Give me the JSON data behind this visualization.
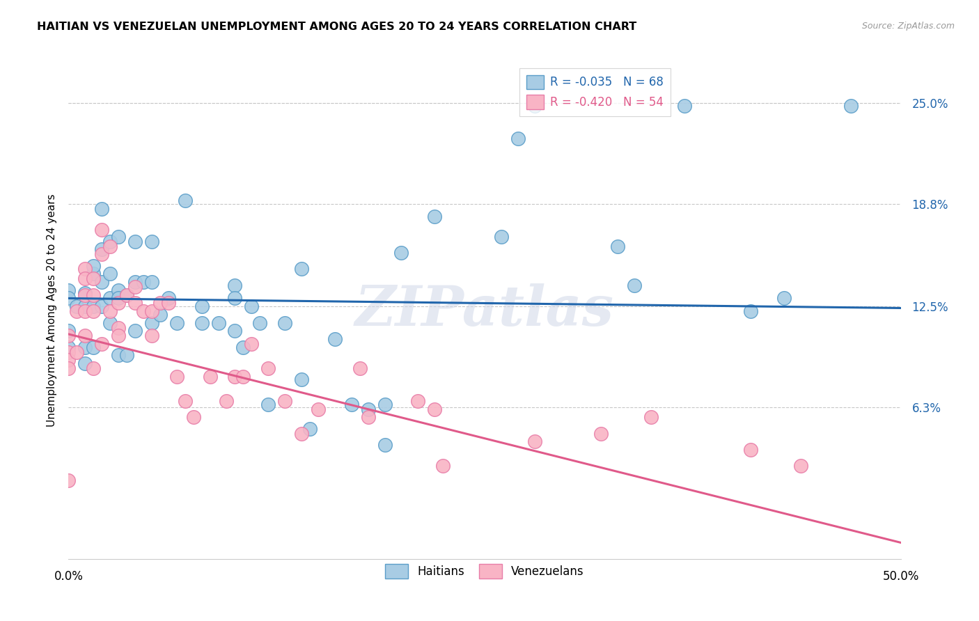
{
  "title": "HAITIAN VS VENEZUELAN UNEMPLOYMENT AMONG AGES 20 TO 24 YEARS CORRELATION CHART",
  "source": "Source: ZipAtlas.com",
  "ylabel": "Unemployment Among Ages 20 to 24 years",
  "ytick_labels": [
    "25.0%",
    "18.8%",
    "12.5%",
    "6.3%"
  ],
  "ytick_values": [
    0.25,
    0.188,
    0.125,
    0.063
  ],
  "xlim": [
    0.0,
    0.5
  ],
  "ylim": [
    -0.03,
    0.275
  ],
  "legend_blue_label": "R = -0.035   N = 68",
  "legend_pink_label": "R = -0.420   N = 54",
  "blue_color": "#a8cce4",
  "pink_color": "#f9b4c5",
  "blue_edge_color": "#5b9ec9",
  "pink_edge_color": "#e87da8",
  "blue_line_color": "#2166ac",
  "pink_line_color": "#e05a8a",
  "watermark": "ZIPatlas",
  "background_color": "#ffffff",
  "grid_color": "#c8c8c8",
  "blue_line_x0": 0.0,
  "blue_line_y0": 0.13,
  "blue_line_x1": 0.5,
  "blue_line_y1": 0.124,
  "pink_line_x0": 0.0,
  "pink_line_y0": 0.108,
  "pink_line_x1": 0.5,
  "pink_line_y1": -0.02,
  "blue_points_x": [
    0.0,
    0.0,
    0.0,
    0.0,
    0.005,
    0.01,
    0.01,
    0.01,
    0.01,
    0.015,
    0.015,
    0.015,
    0.015,
    0.02,
    0.02,
    0.02,
    0.02,
    0.025,
    0.025,
    0.025,
    0.025,
    0.03,
    0.03,
    0.03,
    0.03,
    0.035,
    0.035,
    0.04,
    0.04,
    0.04,
    0.045,
    0.05,
    0.05,
    0.05,
    0.055,
    0.06,
    0.065,
    0.07,
    0.08,
    0.08,
    0.09,
    0.1,
    0.1,
    0.1,
    0.105,
    0.11,
    0.115,
    0.12,
    0.13,
    0.14,
    0.14,
    0.145,
    0.16,
    0.17,
    0.18,
    0.19,
    0.19,
    0.2,
    0.22,
    0.26,
    0.27,
    0.28,
    0.33,
    0.34,
    0.37,
    0.41,
    0.43,
    0.47
  ],
  "blue_points_y": [
    0.135,
    0.13,
    0.11,
    0.1,
    0.125,
    0.133,
    0.125,
    0.1,
    0.09,
    0.145,
    0.15,
    0.125,
    0.1,
    0.185,
    0.16,
    0.14,
    0.125,
    0.165,
    0.145,
    0.13,
    0.115,
    0.168,
    0.135,
    0.13,
    0.095,
    0.132,
    0.095,
    0.165,
    0.14,
    0.11,
    0.14,
    0.165,
    0.14,
    0.115,
    0.12,
    0.13,
    0.115,
    0.19,
    0.125,
    0.115,
    0.115,
    0.138,
    0.13,
    0.11,
    0.1,
    0.125,
    0.115,
    0.065,
    0.115,
    0.148,
    0.08,
    0.05,
    0.105,
    0.065,
    0.062,
    0.065,
    0.04,
    0.158,
    0.18,
    0.168,
    0.228,
    0.248,
    0.162,
    0.138,
    0.248,
    0.122,
    0.13,
    0.248
  ],
  "pink_points_x": [
    0.0,
    0.0,
    0.0,
    0.0,
    0.0,
    0.005,
    0.005,
    0.01,
    0.01,
    0.01,
    0.01,
    0.01,
    0.015,
    0.015,
    0.015,
    0.015,
    0.02,
    0.02,
    0.02,
    0.025,
    0.025,
    0.03,
    0.03,
    0.03,
    0.035,
    0.04,
    0.04,
    0.045,
    0.05,
    0.05,
    0.055,
    0.06,
    0.065,
    0.07,
    0.075,
    0.085,
    0.095,
    0.1,
    0.105,
    0.11,
    0.12,
    0.13,
    0.14,
    0.15,
    0.175,
    0.18,
    0.21,
    0.22,
    0.225,
    0.28,
    0.32,
    0.35,
    0.41,
    0.44
  ],
  "pink_points_y": [
    0.107,
    0.097,
    0.092,
    0.087,
    0.018,
    0.122,
    0.097,
    0.148,
    0.142,
    0.132,
    0.122,
    0.107,
    0.142,
    0.132,
    0.122,
    0.087,
    0.172,
    0.157,
    0.102,
    0.162,
    0.122,
    0.127,
    0.112,
    0.107,
    0.132,
    0.137,
    0.127,
    0.122,
    0.122,
    0.107,
    0.127,
    0.127,
    0.082,
    0.067,
    0.057,
    0.082,
    0.067,
    0.082,
    0.082,
    0.102,
    0.087,
    0.067,
    0.047,
    0.062,
    0.087,
    0.057,
    0.067,
    0.062,
    0.027,
    0.042,
    0.047,
    0.057,
    0.037,
    0.027
  ]
}
